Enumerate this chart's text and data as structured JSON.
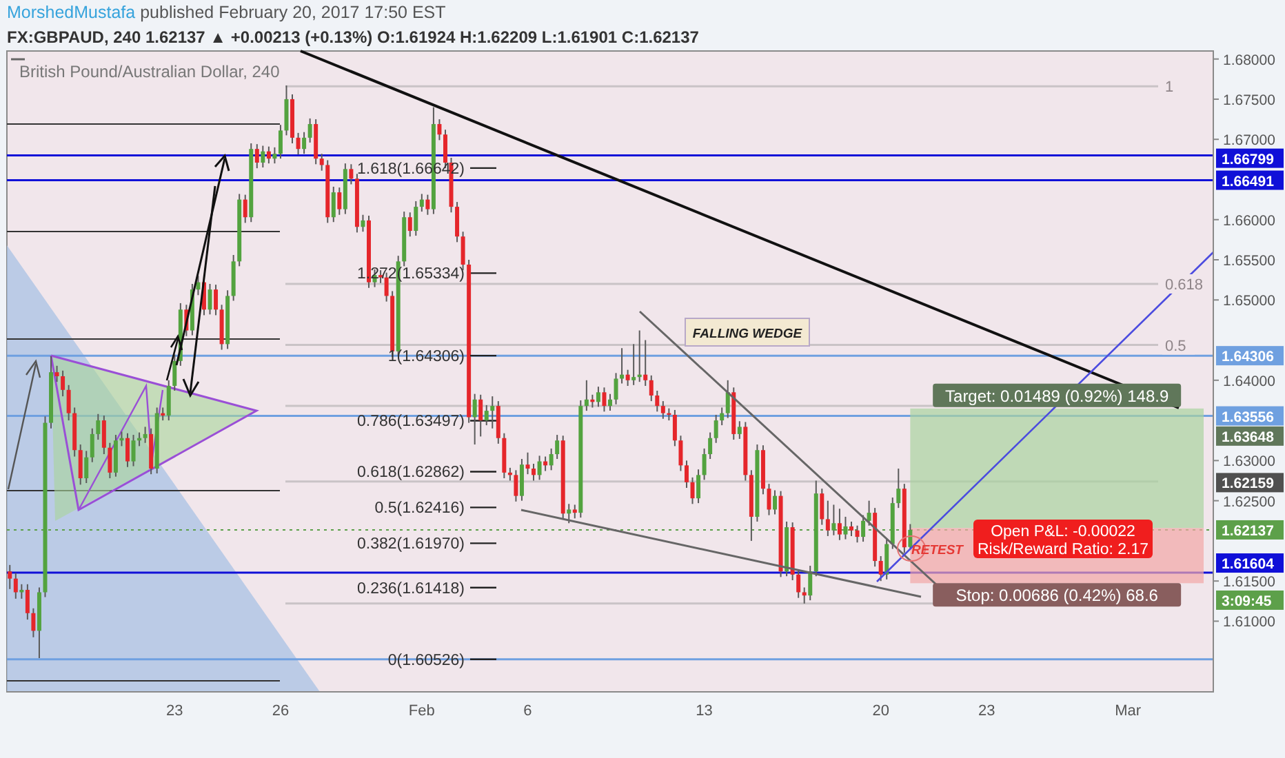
{
  "chart_data": {
    "type": "candlestick",
    "title": "British Pound/Australian Dollar, 240",
    "subtitle": "FX:GBPAUD, 240 1.62137 ▲ +0.00213 (+0.13%) O:1.61924 H:1.62209 L:1.61901 C:1.62137",
    "categories": [
      null,
      null,
      null,
      null,
      null,
      null,
      null,
      null,
      null,
      null,
      null,
      null,
      null,
      null,
      null,
      null,
      null,
      null,
      null,
      null,
      null,
      null,
      null,
      null,
      null,
      null,
      null,
      null,
      "23",
      null,
      null,
      null,
      null,
      null,
      null,
      null,
      null,
      null,
      null,
      null,
      null,
      null,
      null,
      null,
      null,
      null,
      "26",
      null,
      null,
      null,
      null,
      null,
      null,
      null,
      null,
      null,
      null,
      null,
      null,
      null,
      null,
      null,
      null,
      null,
      null,
      null,
      null,
      null,
      null,
      null,
      "Feb",
      null,
      null,
      null,
      null,
      null,
      null,
      null,
      null,
      null,
      null,
      null,
      null,
      null,
      null,
      null,
      null,
      null,
      "6",
      null,
      null,
      null,
      null,
      null,
      null,
      null,
      null,
      null,
      null,
      null,
      null,
      null,
      null,
      null,
      null,
      null,
      null,
      null,
      null,
      null,
      null,
      null,
      null,
      null,
      null,
      null,
      null,
      null,
      "13",
      null,
      null,
      null,
      null,
      null,
      null,
      null,
      null,
      null,
      null,
      null,
      null,
      null,
      null,
      null,
      null,
      null,
      null,
      null,
      null,
      null,
      null,
      null,
      null,
      null,
      null,
      null,
      null,
      null,
      "20",
      null,
      null,
      null,
      null,
      null,
      null,
      null,
      null,
      null,
      null,
      null,
      null,
      null,
      null,
      null,
      null,
      null,
      "23",
      null,
      null,
      null,
      null,
      null,
      null,
      null,
      null,
      null,
      null,
      null,
      null,
      null,
      null,
      null,
      null,
      null,
      null,
      null,
      null,
      null,
      null,
      null,
      "Mar",
      null,
      null,
      null,
      null,
      null,
      null,
      null,
      null,
      null,
      null,
      null,
      null,
      null,
      null
    ],
    "ohlc": [
      [
        1.6162,
        1.617,
        1.614,
        1.6153
      ],
      [
        1.6153,
        1.616,
        1.6128,
        1.6136
      ],
      [
        1.6136,
        1.6146,
        1.6128,
        1.6139
      ],
      [
        1.6139,
        1.6146,
        1.6102,
        1.611
      ],
      [
        1.611,
        1.6116,
        1.608,
        1.6088
      ],
      [
        1.6088,
        1.6142,
        1.6054,
        1.6136
      ],
      [
        1.6136,
        1.6355,
        1.613,
        1.6347
      ],
      [
        1.6347,
        1.643,
        1.634,
        1.641
      ],
      [
        1.641,
        1.6418,
        1.6398,
        1.6405
      ],
      [
        1.6405,
        1.6412,
        1.638,
        1.6388
      ],
      [
        1.6388,
        1.6394,
        1.635,
        1.6359
      ],
      [
        1.6359,
        1.6366,
        1.6305,
        1.6313
      ],
      [
        1.6313,
        1.632,
        1.627,
        1.6278
      ],
      [
        1.6278,
        1.6312,
        1.6272,
        1.6304
      ],
      [
        1.6304,
        1.634,
        1.6298,
        1.6333
      ],
      [
        1.6333,
        1.6358,
        1.6326,
        1.635
      ],
      [
        1.635,
        1.6356,
        1.6308,
        1.6316
      ],
      [
        1.6316,
        1.6322,
        1.6278,
        1.6285
      ],
      [
        1.6285,
        1.6332,
        1.628,
        1.6325
      ],
      [
        1.6325,
        1.6336,
        1.6318,
        1.6328
      ],
      [
        1.6328,
        1.6334,
        1.6292,
        1.6299
      ],
      [
        1.6299,
        1.6332,
        1.6293,
        1.6325
      ],
      [
        1.6325,
        1.6335,
        1.6318,
        1.6328
      ],
      [
        1.6328,
        1.6342,
        1.6322,
        1.6333
      ],
      [
        1.6333,
        1.634,
        1.6283,
        1.629
      ],
      [
        1.629,
        1.6366,
        1.6284,
        1.6359
      ],
      [
        1.6359,
        1.6366,
        1.635,
        1.6356
      ],
      [
        1.6356,
        1.64,
        1.635,
        1.6393
      ],
      [
        1.6393,
        1.6432,
        1.6387,
        1.6424
      ],
      [
        1.6424,
        1.6496,
        1.6418,
        1.6488
      ],
      [
        1.6488,
        1.6494,
        1.6455,
        1.6462
      ],
      [
        1.6462,
        1.652,
        1.6456,
        1.6513
      ],
      [
        1.6513,
        1.653,
        1.6506,
        1.6522
      ],
      [
        1.6522,
        1.6528,
        1.6481,
        1.6488
      ],
      [
        1.6488,
        1.652,
        1.6482,
        1.6513
      ],
      [
        1.6513,
        1.6519,
        1.6481,
        1.6488
      ],
      [
        1.6488,
        1.6494,
        1.6438,
        1.6445
      ],
      [
        1.6445,
        1.6512,
        1.6439,
        1.6505
      ],
      [
        1.6505,
        1.6556,
        1.6499,
        1.6548
      ],
      [
        1.6548,
        1.6632,
        1.6542,
        1.6625
      ],
      [
        1.6625,
        1.6631,
        1.6596,
        1.6603
      ],
      [
        1.6603,
        1.6695,
        1.6597,
        1.6688
      ],
      [
        1.6688,
        1.6694,
        1.6664,
        1.6671
      ],
      [
        1.6671,
        1.6692,
        1.6665,
        1.6685
      ],
      [
        1.6685,
        1.6691,
        1.667,
        1.6676
      ],
      [
        1.6676,
        1.669,
        1.667,
        1.6682
      ],
      [
        1.6682,
        1.6718,
        1.6676,
        1.6711
      ],
      [
        1.6711,
        1.6767,
        1.6705,
        1.675
      ],
      [
        1.675,
        1.6756,
        1.6695,
        1.6702
      ],
      [
        1.6702,
        1.6708,
        1.6681,
        1.6688
      ],
      [
        1.6688,
        1.6709,
        1.6682,
        1.6702
      ],
      [
        1.6702,
        1.6726,
        1.6696,
        1.6719
      ],
      [
        1.6719,
        1.6725,
        1.6669,
        1.6676
      ],
      [
        1.6676,
        1.6682,
        1.6661,
        1.6668
      ],
      [
        1.6668,
        1.6674,
        1.6596,
        1.6603
      ],
      [
        1.6603,
        1.6641,
        1.6597,
        1.6634
      ],
      [
        1.6634,
        1.664,
        1.6606,
        1.6613
      ],
      [
        1.6613,
        1.667,
        1.6607,
        1.6663
      ],
      [
        1.6663,
        1.6669,
        1.6644,
        1.6651
      ],
      [
        1.6651,
        1.6657,
        1.6584,
        1.6591
      ],
      [
        1.6591,
        1.6606,
        1.6585,
        1.6599
      ],
      [
        1.6599,
        1.6605,
        1.6515,
        1.6522
      ],
      [
        1.6522,
        1.6538,
        1.6516,
        1.6531
      ],
      [
        1.6531,
        1.6537,
        1.6521,
        1.6528
      ],
      [
        1.6528,
        1.6534,
        1.6498,
        1.6505
      ],
      [
        1.6505,
        1.6511,
        1.6429,
        1.6436
      ],
      [
        1.6436,
        1.6555,
        1.643,
        1.6548
      ],
      [
        1.6548,
        1.661,
        1.6542,
        1.6603
      ],
      [
        1.6603,
        1.6609,
        1.6579,
        1.6586
      ],
      [
        1.6586,
        1.6623,
        1.658,
        1.6616
      ],
      [
        1.6616,
        1.6632,
        1.661,
        1.6625
      ],
      [
        1.6625,
        1.6631,
        1.6606,
        1.6613
      ],
      [
        1.6613,
        1.674,
        1.6607,
        1.6719
      ],
      [
        1.6719,
        1.6725,
        1.6699,
        1.6706
      ],
      [
        1.6706,
        1.6712,
        1.6664,
        1.6671
      ],
      [
        1.6671,
        1.6677,
        1.6609,
        1.6616
      ],
      [
        1.6616,
        1.6622,
        1.6572,
        1.6579
      ],
      [
        1.6579,
        1.6585,
        1.6537,
        1.6544
      ],
      [
        1.6544,
        1.655,
        1.6347,
        1.6354
      ],
      [
        1.6354,
        1.6383,
        1.632,
        1.6376
      ],
      [
        1.6376,
        1.6382,
        1.633,
        1.635
      ],
      [
        1.635,
        1.6369,
        1.6344,
        1.6362
      ],
      [
        1.6362,
        1.638,
        1.634,
        1.6368
      ],
      [
        1.6368,
        1.6374,
        1.6321,
        1.6328
      ],
      [
        1.6328,
        1.6334,
        1.6278,
        1.6285
      ],
      [
        1.6285,
        1.6291,
        1.6275,
        1.6282
      ],
      [
        1.6282,
        1.6288,
        1.6249,
        1.6256
      ],
      [
        1.6256,
        1.6302,
        1.625,
        1.6295
      ],
      [
        1.6295,
        1.631,
        1.6283,
        1.629
      ],
      [
        1.629,
        1.6296,
        1.6275,
        1.6282
      ],
      [
        1.6282,
        1.6306,
        1.6276,
        1.6299
      ],
      [
        1.6299,
        1.6305,
        1.6287,
        1.6294
      ],
      [
        1.6294,
        1.6315,
        1.6288,
        1.6308
      ],
      [
        1.6308,
        1.6332,
        1.6302,
        1.6325
      ],
      [
        1.6325,
        1.6331,
        1.6227,
        1.6234
      ],
      [
        1.6234,
        1.6246,
        1.6222,
        1.6239
      ],
      [
        1.6239,
        1.6245,
        1.6228,
        1.6235
      ],
      [
        1.6235,
        1.6375,
        1.6229,
        1.6368
      ],
      [
        1.6368,
        1.64,
        1.6362,
        1.6376
      ],
      [
        1.6376,
        1.6382,
        1.6366,
        1.6373
      ],
      [
        1.6373,
        1.6392,
        1.6367,
        1.6385
      ],
      [
        1.6385,
        1.6391,
        1.6361,
        1.6368
      ],
      [
        1.6368,
        1.6383,
        1.6362,
        1.6376
      ],
      [
        1.6376,
        1.6409,
        1.637,
        1.6402
      ],
      [
        1.6402,
        1.644,
        1.6396,
        1.6407
      ],
      [
        1.6407,
        1.6413,
        1.6393,
        1.64
      ],
      [
        1.64,
        1.6445,
        1.6394,
        1.6404
      ],
      [
        1.6404,
        1.6462,
        1.6398,
        1.6407
      ],
      [
        1.6407,
        1.645,
        1.6393,
        1.64
      ],
      [
        1.64,
        1.6406,
        1.6374,
        1.6381
      ],
      [
        1.6381,
        1.6387,
        1.6361,
        1.6368
      ],
      [
        1.6368,
        1.6374,
        1.6352,
        1.6359
      ],
      [
        1.6359,
        1.6365,
        1.635,
        1.6357
      ],
      [
        1.6357,
        1.6363,
        1.6318,
        1.6325
      ],
      [
        1.6325,
        1.6331,
        1.6287,
        1.6294
      ],
      [
        1.6294,
        1.63,
        1.6266,
        1.6273
      ],
      [
        1.6273,
        1.6279,
        1.6246,
        1.6253
      ],
      [
        1.6253,
        1.6289,
        1.6247,
        1.6282
      ],
      [
        1.6282,
        1.6315,
        1.6276,
        1.6308
      ],
      [
        1.6308,
        1.6335,
        1.6302,
        1.6328
      ],
      [
        1.6328,
        1.6357,
        1.6322,
        1.635
      ],
      [
        1.635,
        1.6366,
        1.6344,
        1.6359
      ],
      [
        1.6359,
        1.64,
        1.6353,
        1.6385
      ],
      [
        1.6385,
        1.6391,
        1.6326,
        1.6333
      ],
      [
        1.6333,
        1.6349,
        1.6327,
        1.6342
      ],
      [
        1.6342,
        1.6348,
        1.6275,
        1.6282
      ],
      [
        1.6282,
        1.6288,
        1.62,
        1.623
      ],
      [
        1.623,
        1.632,
        1.6224,
        1.6313
      ],
      [
        1.6313,
        1.6319,
        1.6258,
        1.6265
      ],
      [
        1.6265,
        1.6271,
        1.6232,
        1.6239
      ],
      [
        1.6239,
        1.6263,
        1.6233,
        1.6256
      ],
      [
        1.6256,
        1.6262,
        1.6155,
        1.6162
      ],
      [
        1.6162,
        1.6224,
        1.6156,
        1.6217
      ],
      [
        1.6217,
        1.6223,
        1.6151,
        1.6158
      ],
      [
        1.6158,
        1.6164,
        1.6129,
        1.6136
      ],
      [
        1.6136,
        1.6142,
        1.6122,
        1.6132
      ],
      [
        1.6132,
        1.6169,
        1.6126,
        1.6162
      ],
      [
        1.6162,
        1.6275,
        1.6156,
        1.6259
      ],
      [
        1.6259,
        1.6265,
        1.622,
        1.6227
      ],
      [
        1.6227,
        1.625,
        1.6206,
        1.6213
      ],
      [
        1.6213,
        1.6245,
        1.6207,
        1.6222
      ],
      [
        1.6222,
        1.624,
        1.6201,
        1.6208
      ],
      [
        1.6208,
        1.623,
        1.6202,
        1.6218
      ],
      [
        1.6218,
        1.6224,
        1.6206,
        1.6213
      ],
      [
        1.6213,
        1.6219,
        1.6198,
        1.6205
      ],
      [
        1.6205,
        1.6232,
        1.6199,
        1.6225
      ],
      [
        1.6225,
        1.625,
        1.6219,
        1.6235
      ],
      [
        1.6235,
        1.6241,
        1.6168,
        1.6175
      ],
      [
        1.6175,
        1.6181,
        1.615,
        1.6158
      ],
      [
        1.6158,
        1.6203,
        1.6152,
        1.6196
      ],
      [
        1.6196,
        1.6254,
        1.619,
        1.6247
      ],
      [
        1.6247,
        1.629,
        1.6241,
        1.6265
      ],
      [
        1.6265,
        1.6271,
        1.6185,
        1.6192
      ],
      [
        1.61924,
        1.62209,
        1.61901,
        1.62137
      ],
      null,
      null,
      null,
      null,
      null,
      null,
      null,
      null,
      null,
      null,
      null,
      null,
      null,
      null,
      null,
      null,
      null,
      null,
      null,
      null,
      null,
      null,
      null,
      null,
      null,
      null,
      null,
      null,
      null,
      null,
      null,
      null,
      null,
      null,
      null,
      null,
      null,
      null,
      null,
      null,
      null,
      null,
      null,
      null,
      null,
      null,
      null,
      null,
      null,
      null,
      null
    ],
    "ylim": [
      1.6012,
      1.681
    ],
    "yticks": [
      {
        "value": 1.61,
        "label": "1.61000"
      },
      {
        "value": 1.615,
        "label": "1.61500"
      },
      {
        "value": 1.625,
        "label": "1.62500"
      },
      {
        "value": 1.63,
        "label": "1.63000"
      },
      {
        "value": 1.64,
        "label": "1.64000"
      },
      {
        "value": 1.65,
        "label": "1.65000"
      },
      {
        "value": 1.655,
        "label": "1.65500"
      },
      {
        "value": 1.66,
        "label": "1.66000"
      },
      {
        "value": 1.67,
        "label": "1.67000"
      },
      {
        "value": 1.675,
        "label": "1.67500"
      },
      {
        "value": 1.68,
        "label": "1.68000"
      }
    ],
    "ref_lines": [
      {
        "axis": "y",
        "value": 1.66799,
        "label": "1.66799",
        "color": "#1010d8",
        "line_style": "solid"
      },
      {
        "axis": "y",
        "value": 1.66642,
        "label": "1.618(1.66642)"
      },
      {
        "axis": "y",
        "value": 1.65334,
        "label": "1.272(1.65334)"
      },
      {
        "axis": "y",
        "value": 1.63497,
        "label": "0.786(1.63497)"
      },
      {
        "axis": "y",
        "value": 1.62862,
        "label": "0.618(1.62862)"
      },
      {
        "axis": "y",
        "value": 1.62416,
        "label": "0.5(1.62416)"
      },
      {
        "axis": "y",
        "value": 1.6197,
        "label": "0.382(1.61970)"
      },
      {
        "axis": "y",
        "value": 1.61418,
        "label": "0.236(1.61418)"
      },
      {
        "axis": "y",
        "value": 1.66491,
        "label": "1.66491",
        "color": "#1010d8",
        "line_style": "solid"
      },
      {
        "axis": "y",
        "value": 1.64306,
        "label": "1.64306",
        "color": "#6fa0e0",
        "line_style": "solid"
      },
      {
        "axis": "y",
        "value": 1.63556,
        "label": "1.63556",
        "color": "#6fa0e0",
        "line_style": "solid"
      },
      {
        "axis": "y",
        "value": 1.62137,
        "label": "1.62137",
        "color": "#5da04a",
        "line_style": "dotted"
      },
      {
        "axis": "y",
        "value": 1.61604,
        "label": "1.61604",
        "color": "#1010d8",
        "line_style": "solid"
      },
      {
        "axis": "y",
        "value": 1.60526,
        "color": "#6fa0e0",
        "line_style": "solid"
      },
      {
        "axis": "y",
        "value": 1.6766,
        "color": "#c9c3c6"
      },
      {
        "axis": "y",
        "value": 1.652,
        "color": "#c9c3c6"
      },
      {
        "axis": "y",
        "value": 1.6444,
        "color": "#c9c3c6"
      },
      {
        "axis": "y",
        "value": 1.6368,
        "color": "#c9c3c6"
      },
      {
        "axis": "y",
        "value": 1.6274,
        "color": "#c9c3c6"
      },
      {
        "axis": "y",
        "value": 1.6122,
        "color": "#c9c3c6"
      }
    ],
    "bands": [
      {
        "axis": "y",
        "from": 1.62159,
        "to": 1.63648,
        "label": "Target: 0.01489 (0.92%) 148.9",
        "color": "#a9d3a0"
      },
      {
        "axis": "y",
        "from": 1.61473,
        "to": 1.62159,
        "label": "Stop: 0.00686 (0.42%) 68.6",
        "color": "#f2a7a7"
      }
    ],
    "annotations": [
      "MorshedMustafa published February 20, 2017 17:50 EST",
      "3:09:45",
      "FALLING WEDGE",
      "RETEST",
      "Open P&L: -0.00022",
      "Risk/Reward Ratio: 2.17",
      "1",
      "0.618",
      "0.5",
      "1.63648",
      "1.62159",
      "1(1.64306)",
      "0(1.60526)"
    ]
  }
}
